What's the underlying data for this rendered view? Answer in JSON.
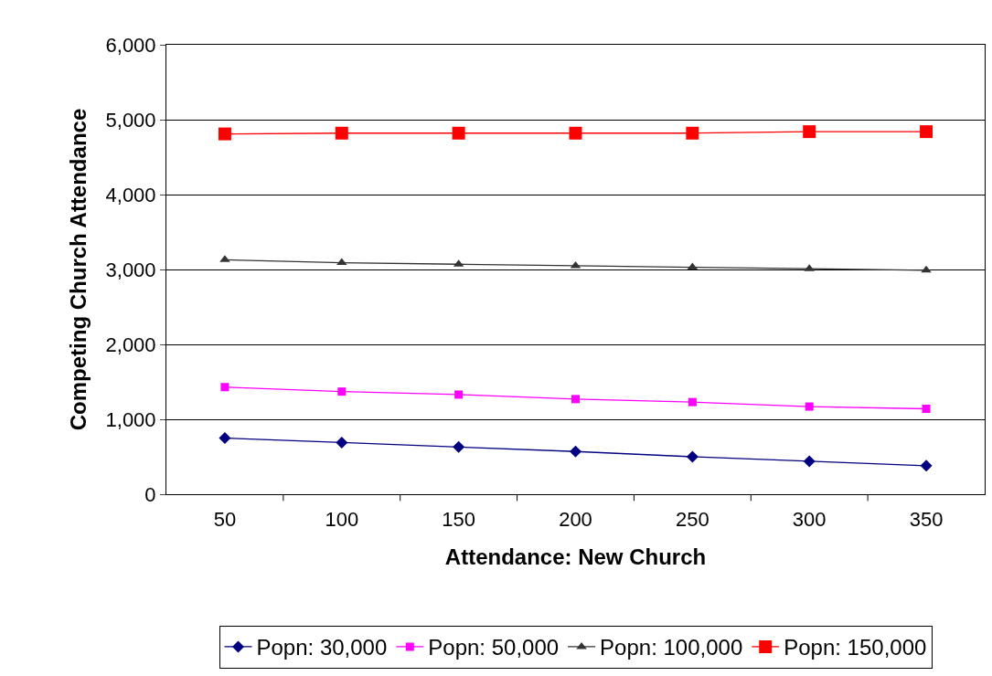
{
  "chart_data": {
    "type": "line",
    "xlabel": "Attendance: New Church",
    "ylabel": "Competing Church Attendance",
    "categories": [
      "50",
      "100",
      "150",
      "200",
      "250",
      "300",
      "350"
    ],
    "series": [
      {
        "name": "Popn: 30,000",
        "color": "#000080",
        "marker": "diamond",
        "values": [
          750,
          690,
          630,
          570,
          500,
          440,
          380
        ]
      },
      {
        "name": "Popn: 50,000",
        "color": "#ff00ff",
        "marker": "square",
        "values": [
          1430,
          1370,
          1330,
          1270,
          1230,
          1170,
          1140
        ]
      },
      {
        "name": "Popn: 100,000",
        "color": "#333333",
        "marker": "triangle",
        "values": [
          3130,
          3090,
          3070,
          3050,
          3030,
          3010,
          2990
        ]
      },
      {
        "name": "Popn: 150,000",
        "color": "#ff0000",
        "marker": "square",
        "values": [
          4810,
          4820,
          4820,
          4820,
          4820,
          4840,
          4840
        ]
      }
    ],
    "ylim": [
      0,
      6000
    ],
    "yticks": [
      {
        "value": 0,
        "label": "0"
      },
      {
        "value": 1000,
        "label": "1,000"
      },
      {
        "value": 2000,
        "label": "2,000"
      },
      {
        "value": 3000,
        "label": "3,000"
      },
      {
        "value": 4000,
        "label": "4,000"
      },
      {
        "value": 5000,
        "label": "5,000"
      },
      {
        "value": 6000,
        "label": "6,000"
      }
    ],
    "grid": "y",
    "legend": "bottom"
  }
}
